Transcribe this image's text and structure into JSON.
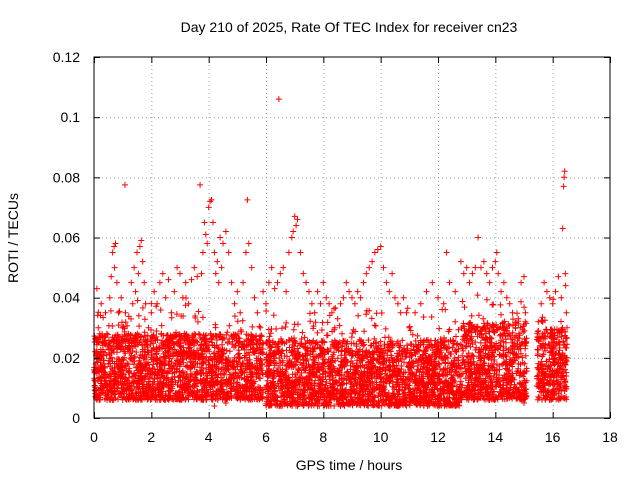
{
  "chart_data": {
    "type": "scatter",
    "title": "Day 210 of 2025, Rate Of TEC Index for receiver cn23",
    "xlabel": "GPS time / hours",
    "ylabel": "ROTI / TECUs",
    "xlim": [
      0,
      18
    ],
    "ylim": [
      0,
      0.12
    ],
    "x_ticks": [
      0,
      2,
      4,
      6,
      8,
      10,
      12,
      14,
      16,
      18
    ],
    "x_tick_labels": [
      "0",
      "2",
      "4",
      "6",
      "8",
      "10",
      "12",
      "14",
      "16",
      "18"
    ],
    "y_ticks": [
      0,
      0.02,
      0.04,
      0.06,
      0.08,
      0.1,
      0.12
    ],
    "y_tick_labels": [
      "0",
      "0.02",
      "0.04",
      "0.06",
      "0.08",
      "0.1",
      "0.12"
    ],
    "grid": true,
    "marker": "+",
    "color": "#ff0000",
    "series": [
      {
        "name": "ROTI",
        "points": [
          [
            0.05,
            0.012
          ],
          [
            0.1,
            0.043
          ],
          [
            0.15,
            0.03
          ],
          [
            0.2,
            0.02
          ],
          [
            0.25,
            0.038
          ],
          [
            0.3,
            0.025
          ],
          [
            0.35,
            0.015
          ],
          [
            0.4,
            0.035
          ],
          [
            0.45,
            0.028
          ],
          [
            0.5,
            0.018
          ],
          [
            0.55,
            0.04
          ],
          [
            0.6,
            0.047
          ],
          [
            0.65,
            0.055
          ],
          [
            0.7,
            0.057
          ],
          [
            0.72,
            0.05
          ],
          [
            0.75,
            0.058
          ],
          [
            0.8,
            0.045
          ],
          [
            0.85,
            0.035
          ],
          [
            0.9,
            0.025
          ],
          [
            0.95,
            0.04
          ],
          [
            1.0,
            0.03
          ],
          [
            1.05,
            0.02
          ],
          [
            1.08,
            0.0775
          ],
          [
            1.1,
            0.035
          ],
          [
            1.2,
            0.028
          ],
          [
            1.3,
            0.045
          ],
          [
            1.35,
            0.038
          ],
          [
            1.4,
            0.05
          ],
          [
            1.45,
            0.042
          ],
          [
            1.5,
            0.055
          ],
          [
            1.55,
            0.048
          ],
          [
            1.6,
            0.057
          ],
          [
            1.65,
            0.059
          ],
          [
            1.7,
            0.052
          ],
          [
            1.75,
            0.045
          ],
          [
            1.8,
            0.038
          ],
          [
            1.9,
            0.03
          ],
          [
            2.0,
            0.035
          ],
          [
            2.1,
            0.042
          ],
          [
            2.2,
            0.038
          ],
          [
            2.3,
            0.045
          ],
          [
            2.4,
            0.048
          ],
          [
            2.5,
            0.04
          ],
          [
            2.6,
            0.046
          ],
          [
            2.7,
            0.035
          ],
          [
            2.8,
            0.042
          ],
          [
            2.9,
            0.05
          ],
          [
            3.0,
            0.048
          ],
          [
            3.1,
            0.04
          ],
          [
            3.2,
            0.045
          ],
          [
            3.3,
            0.038
          ],
          [
            3.4,
            0.046
          ],
          [
            3.5,
            0.05
          ],
          [
            3.6,
            0.047
          ],
          [
            3.7,
            0.0775
          ],
          [
            3.75,
            0.048
          ],
          [
            3.8,
            0.055
          ],
          [
            3.85,
            0.065
          ],
          [
            3.9,
            0.061
          ],
          [
            3.95,
            0.058
          ],
          [
            4.0,
            0.07
          ],
          [
            4.05,
            0.072
          ],
          [
            4.1,
            0.0725
          ],
          [
            4.15,
            0.065
          ],
          [
            4.2,
            0.055
          ],
          [
            4.25,
            0.048
          ],
          [
            4.3,
            0.052
          ],
          [
            4.35,
            0.045
          ],
          [
            4.4,
            0.06
          ],
          [
            4.45,
            0.05
          ],
          [
            4.5,
            0.058
          ],
          [
            4.6,
            0.062
          ],
          [
            4.7,
            0.055
          ],
          [
            4.8,
            0.045
          ],
          [
            4.9,
            0.038
          ],
          [
            5.0,
            0.042
          ],
          [
            5.1,
            0.035
          ],
          [
            5.2,
            0.045
          ],
          [
            5.3,
            0.055
          ],
          [
            5.35,
            0.0725
          ],
          [
            5.4,
            0.058
          ],
          [
            5.5,
            0.05
          ],
          [
            5.6,
            0.04
          ],
          [
            5.7,
            0.035
          ],
          [
            5.8,
            0.03
          ],
          [
            5.9,
            0.042
          ],
          [
            6.0,
            0.038
          ],
          [
            6.1,
            0.045
          ],
          [
            6.2,
            0.05
          ],
          [
            6.3,
            0.043
          ],
          [
            6.4,
            0.045
          ],
          [
            6.45,
            0.106
          ],
          [
            6.5,
            0.048
          ],
          [
            6.6,
            0.05
          ],
          [
            6.7,
            0.042
          ],
          [
            6.8,
            0.055
          ],
          [
            6.9,
            0.06
          ],
          [
            6.95,
            0.062
          ],
          [
            7.0,
            0.067
          ],
          [
            7.05,
            0.064
          ],
          [
            7.1,
            0.066
          ],
          [
            7.2,
            0.055
          ],
          [
            7.3,
            0.048
          ],
          [
            7.4,
            0.045
          ],
          [
            7.5,
            0.042
          ],
          [
            7.6,
            0.038
          ],
          [
            7.7,
            0.035
          ],
          [
            7.8,
            0.042
          ],
          [
            7.9,
            0.038
          ],
          [
            8.0,
            0.045
          ],
          [
            8.1,
            0.04
          ],
          [
            8.2,
            0.038
          ],
          [
            8.3,
            0.035
          ],
          [
            8.4,
            0.03
          ],
          [
            8.5,
            0.033
          ],
          [
            8.6,
            0.038
          ],
          [
            8.7,
            0.04
          ],
          [
            8.8,
            0.045
          ],
          [
            8.9,
            0.042
          ],
          [
            9.0,
            0.04
          ],
          [
            9.1,
            0.038
          ],
          [
            9.2,
            0.042
          ],
          [
            9.3,
            0.04
          ],
          [
            9.4,
            0.045
          ],
          [
            9.5,
            0.048
          ],
          [
            9.6,
            0.05
          ],
          [
            9.7,
            0.052
          ],
          [
            9.8,
            0.055
          ],
          [
            9.9,
            0.056
          ],
          [
            10.0,
            0.057
          ],
          [
            10.1,
            0.05
          ],
          [
            10.2,
            0.045
          ],
          [
            10.3,
            0.042
          ],
          [
            10.4,
            0.048
          ],
          [
            10.5,
            0.04
          ],
          [
            10.6,
            0.038
          ],
          [
            10.7,
            0.035
          ],
          [
            10.8,
            0.04
          ],
          [
            10.9,
            0.035
          ],
          [
            11.0,
            0.03
          ],
          [
            11.2,
            0.035
          ],
          [
            11.4,
            0.038
          ],
          [
            11.6,
            0.042
          ],
          [
            11.8,
            0.045
          ],
          [
            12.0,
            0.04
          ],
          [
            12.2,
            0.038
          ],
          [
            12.3,
            0.055
          ],
          [
            12.4,
            0.045
          ],
          [
            12.6,
            0.042
          ],
          [
            12.8,
            0.052
          ],
          [
            12.9,
            0.048
          ],
          [
            13.0,
            0.05
          ],
          [
            13.1,
            0.045
          ],
          [
            13.2,
            0.048
          ],
          [
            13.3,
            0.05
          ],
          [
            13.4,
            0.06
          ],
          [
            13.5,
            0.05
          ],
          [
            13.6,
            0.052
          ],
          [
            13.7,
            0.048
          ],
          [
            13.8,
            0.045
          ],
          [
            13.9,
            0.05
          ],
          [
            14.0,
            0.052
          ],
          [
            14.05,
            0.055
          ],
          [
            14.1,
            0.048
          ],
          [
            14.2,
            0.042
          ],
          [
            14.3,
            0.045
          ],
          [
            14.4,
            0.04
          ],
          [
            14.5,
            0.038
          ],
          [
            14.6,
            0.035
          ],
          [
            14.7,
            0.03
          ],
          [
            14.8,
            0.033
          ],
          [
            14.9,
            0.045
          ],
          [
            15.0,
            0.047
          ],
          [
            15.05,
            0.035
          ],
          [
            15.5,
            0.032
          ],
          [
            15.6,
            0.038
          ],
          [
            15.7,
            0.045
          ],
          [
            15.8,
            0.042
          ],
          [
            15.9,
            0.04
          ],
          [
            16.0,
            0.038
          ],
          [
            16.1,
            0.042
          ],
          [
            16.2,
            0.047
          ],
          [
            16.3,
            0.04
          ],
          [
            16.35,
            0.063
          ],
          [
            16.38,
            0.077
          ],
          [
            16.4,
            0.08
          ],
          [
            16.42,
            0.082
          ],
          [
            16.44,
            0.048
          ],
          [
            16.45,
            0.044
          ],
          [
            16.48,
            0.035
          ],
          [
            0.1,
            0.006
          ],
          [
            0.3,
            0.009
          ],
          [
            0.6,
            0.011
          ],
          [
            0.9,
            0.008
          ],
          [
            1.2,
            0.007
          ],
          [
            1.5,
            0.01
          ],
          [
            1.9,
            0.008
          ],
          [
            2.2,
            0.006
          ],
          [
            2.6,
            0.009
          ],
          [
            3.0,
            0.007
          ],
          [
            3.4,
            0.008
          ],
          [
            3.8,
            0.006
          ],
          [
            4.2,
            0.004
          ],
          [
            4.6,
            0.005
          ],
          [
            5.0,
            0.007
          ],
          [
            5.4,
            0.006
          ],
          [
            5.8,
            0.008
          ],
          [
            6.2,
            0.01
          ],
          [
            6.6,
            0.007
          ],
          [
            7.0,
            0.006
          ],
          [
            7.4,
            0.005
          ],
          [
            7.8,
            0.004
          ],
          [
            8.2,
            0.005
          ],
          [
            8.6,
            0.004
          ],
          [
            9.0,
            0.006
          ],
          [
            9.4,
            0.005
          ],
          [
            9.8,
            0.007
          ],
          [
            10.2,
            0.006
          ],
          [
            10.6,
            0.004
          ],
          [
            11.0,
            0.005
          ],
          [
            11.4,
            0.006
          ],
          [
            11.8,
            0.007
          ],
          [
            12.2,
            0.008
          ],
          [
            12.6,
            0.006
          ],
          [
            13.0,
            0.007
          ],
          [
            13.4,
            0.009
          ],
          [
            13.8,
            0.006
          ],
          [
            14.2,
            0.007
          ],
          [
            14.6,
            0.008
          ],
          [
            15.0,
            0.005
          ],
          [
            15.5,
            0.007
          ],
          [
            15.9,
            0.006
          ],
          [
            16.3,
            0.007
          ],
          [
            16.45,
            0.01
          ],
          [
            0.02,
            0.015
          ],
          [
            0.04,
            0.022
          ],
          [
            16.5,
            0.02
          ],
          [
            16.5,
            0.03
          ]
        ],
        "dense_bands": [
          {
            "x0": 0.0,
            "x1": 5.9,
            "y_low": 0.006,
            "y_high": 0.028
          },
          {
            "x0": 6.0,
            "x1": 12.8,
            "y_low": 0.004,
            "y_high": 0.026
          },
          {
            "x0": 12.8,
            "x1": 15.1,
            "y_low": 0.006,
            "y_high": 0.032
          },
          {
            "x0": 15.45,
            "x1": 16.5,
            "y_low": 0.006,
            "y_high": 0.03
          }
        ]
      }
    ]
  }
}
